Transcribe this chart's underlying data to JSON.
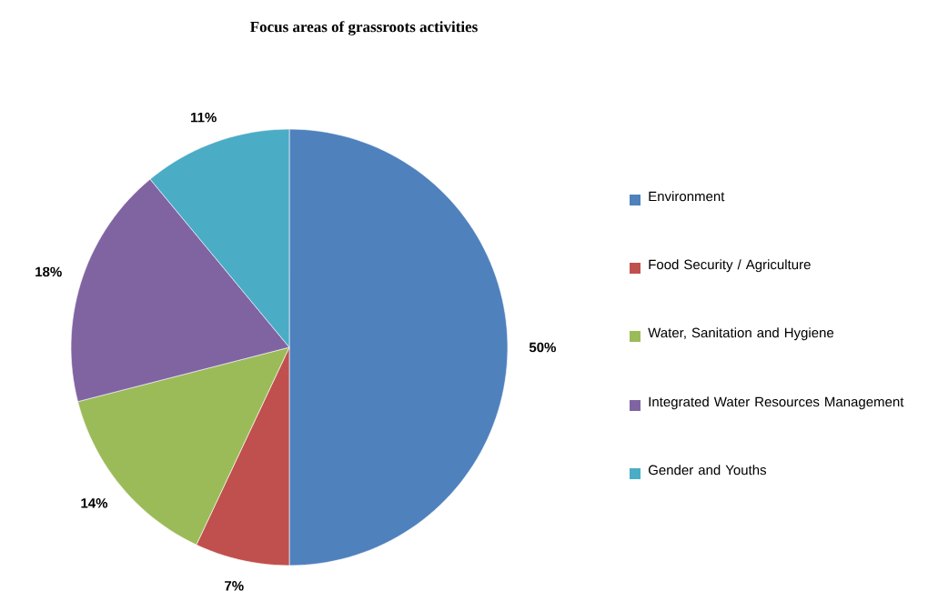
{
  "chart_data": {
    "type": "pie",
    "title": "Focus areas of grassroots activities",
    "categories": [
      "Environment",
      "Food Security / Agriculture",
      "Water, Sanitation and Hygiene",
      "Integrated Water Resources Management",
      "Gender and Youths"
    ],
    "values": [
      50,
      7,
      14,
      18,
      11
    ],
    "value_labels": [
      "50%",
      "7%",
      "14%",
      "18%",
      "11%"
    ],
    "colors": [
      "#4f81bd",
      "#c0504d",
      "#9bbb59",
      "#8064a2",
      "#4bacc6"
    ],
    "legend": "right"
  }
}
